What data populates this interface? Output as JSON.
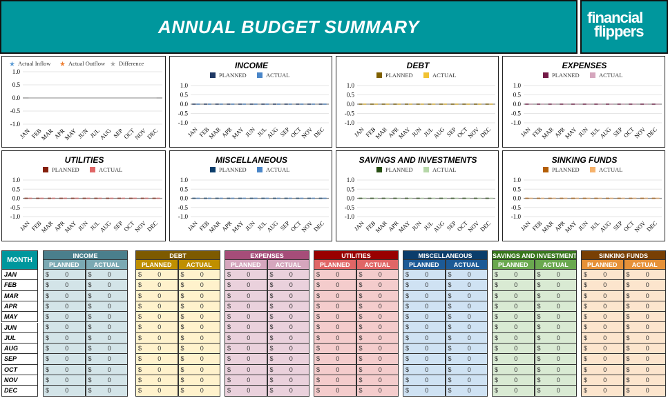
{
  "title": "ANNUAL BUDGET SUMMARY",
  "logo": {
    "line1": "financial",
    "line2": "flippers",
    "brand_color": "#00979d"
  },
  "months": [
    "JAN",
    "FEB",
    "MAR",
    "APR",
    "MAY",
    "JUN",
    "JUL",
    "AUG",
    "SEP",
    "OCT",
    "NOV",
    "DEC"
  ],
  "month_header": "MONTH",
  "chart_data": [
    {
      "type": "line",
      "title": "",
      "legend": [
        "Actual Inflow",
        "Actual Outflow",
        "Difference"
      ],
      "colors": [
        "#5b9bd5",
        "#ed7d31",
        "#a5a5a5"
      ],
      "marker": "star",
      "yticks": [
        "1.0",
        "0.5",
        "0.0",
        "-0.5",
        "-1.0"
      ],
      "ylim": [
        -1,
        1
      ],
      "series": [
        {
          "name": "Actual Inflow",
          "values": [
            0,
            0,
            0,
            0,
            0,
            0,
            0,
            0,
            0,
            0,
            0,
            0
          ]
        },
        {
          "name": "Actual Outflow",
          "values": [
            0,
            0,
            0,
            0,
            0,
            0,
            0,
            0,
            0,
            0,
            0,
            0
          ]
        },
        {
          "name": "Difference",
          "values": [
            0,
            0,
            0,
            0,
            0,
            0,
            0,
            0,
            0,
            0,
            0,
            0
          ]
        }
      ]
    },
    {
      "type": "bar",
      "title": "INCOME",
      "legend": [
        "PLANNED",
        "ACTUAL"
      ],
      "colors": [
        "#1f3864",
        "#4a86c8"
      ],
      "yticks": [
        "1.0",
        "0.5",
        "0.0",
        "-0.5",
        "-1.0"
      ],
      "ylim": [
        -1,
        1
      ],
      "series": [
        {
          "name": "PLANNED",
          "values": [
            0,
            0,
            0,
            0,
            0,
            0,
            0,
            0,
            0,
            0,
            0,
            0
          ]
        },
        {
          "name": "ACTUAL",
          "values": [
            0,
            0,
            0,
            0,
            0,
            0,
            0,
            0,
            0,
            0,
            0,
            0
          ]
        }
      ]
    },
    {
      "type": "bar",
      "title": "DEBT",
      "legend": [
        "PLANNED",
        "ACTUAL"
      ],
      "colors": [
        "#7f6000",
        "#f1c232"
      ],
      "yticks": [
        "1.0",
        "0.5",
        "0.0",
        "-0.5",
        "-1.0"
      ],
      "ylim": [
        -1,
        1
      ],
      "series": [
        {
          "name": "PLANNED",
          "values": [
            0,
            0,
            0,
            0,
            0,
            0,
            0,
            0,
            0,
            0,
            0,
            0
          ]
        },
        {
          "name": "ACTUAL",
          "values": [
            0,
            0,
            0,
            0,
            0,
            0,
            0,
            0,
            0,
            0,
            0,
            0
          ]
        }
      ]
    },
    {
      "type": "bar",
      "title": "EXPENSES",
      "legend": [
        "PLANNED",
        "ACTUAL"
      ],
      "colors": [
        "#741b47",
        "#d5a6bd"
      ],
      "yticks": [
        "1.0",
        "0.5",
        "0.0",
        "-0.5",
        "-1.0"
      ],
      "ylim": [
        -1,
        1
      ],
      "series": [
        {
          "name": "PLANNED",
          "values": [
            0,
            0,
            0,
            0,
            0,
            0,
            0,
            0,
            0,
            0,
            0,
            0
          ]
        },
        {
          "name": "ACTUAL",
          "values": [
            0,
            0,
            0,
            0,
            0,
            0,
            0,
            0,
            0,
            0,
            0,
            0
          ]
        }
      ]
    },
    {
      "type": "bar",
      "title": "UTILITIES",
      "legend": [
        "PLANNED",
        "ACTUAL"
      ],
      "colors": [
        "#85200c",
        "#e06666"
      ],
      "yticks": [
        "1.0",
        "0.5",
        "0.0",
        "-0.5",
        "-1.0"
      ],
      "ylim": [
        -1,
        1
      ],
      "series": [
        {
          "name": "PLANNED",
          "values": [
            0,
            0,
            0,
            0,
            0,
            0,
            0,
            0,
            0,
            0,
            0,
            0
          ]
        },
        {
          "name": "ACTUAL",
          "values": [
            0,
            0,
            0,
            0,
            0,
            0,
            0,
            0,
            0,
            0,
            0,
            0
          ]
        }
      ]
    },
    {
      "type": "bar",
      "title": "MISCELLANEOUS",
      "legend": [
        "PLANNED",
        "ACTUAL"
      ],
      "colors": [
        "#0b3d6b",
        "#4a86c8"
      ],
      "yticks": [
        "1.0",
        "0.5",
        "0.0",
        "-0.5",
        "-1.0"
      ],
      "ylim": [
        -1,
        1
      ],
      "series": [
        {
          "name": "PLANNED",
          "values": [
            0,
            0,
            0,
            0,
            0,
            0,
            0,
            0,
            0,
            0,
            0,
            0
          ]
        },
        {
          "name": "ACTUAL",
          "values": [
            0,
            0,
            0,
            0,
            0,
            0,
            0,
            0,
            0,
            0,
            0,
            0
          ]
        }
      ]
    },
    {
      "type": "bar",
      "title": "SAVINGS AND INVESTMENTS",
      "legend": [
        "PLANNED",
        "ACTUAL"
      ],
      "colors": [
        "#274e13",
        "#b6d7a8"
      ],
      "yticks": [
        "1.0",
        "0.5",
        "0.0",
        "-0.5",
        "-1.0"
      ],
      "ylim": [
        -1,
        1
      ],
      "series": [
        {
          "name": "PLANNED",
          "values": [
            0,
            0,
            0,
            0,
            0,
            0,
            0,
            0,
            0,
            0,
            0,
            0
          ]
        },
        {
          "name": "ACTUAL",
          "values": [
            0,
            0,
            0,
            0,
            0,
            0,
            0,
            0,
            0,
            0,
            0,
            0
          ]
        }
      ]
    },
    {
      "type": "bar",
      "title": "SINKING FUNDS",
      "legend": [
        "PLANNED",
        "ACTUAL"
      ],
      "colors": [
        "#b45f06",
        "#f6b26b"
      ],
      "yticks": [
        "1.0",
        "0.5",
        "0.0",
        "-0.5",
        "-1.0"
      ],
      "ylim": [
        -1,
        1
      ],
      "series": [
        {
          "name": "PLANNED",
          "values": [
            0,
            0,
            0,
            0,
            0,
            0,
            0,
            0,
            0,
            0,
            0,
            0
          ]
        },
        {
          "name": "ACTUAL",
          "values": [
            0,
            0,
            0,
            0,
            0,
            0,
            0,
            0,
            0,
            0,
            0,
            0
          ]
        }
      ]
    }
  ],
  "groups": [
    {
      "title": "INCOME",
      "planned": "PLANNED",
      "actual": "ACTUAL",
      "colors": [
        "#4a7f8c",
        "#7ba9b3",
        "#d3e4e8"
      ]
    },
    {
      "title": "DEBT",
      "planned": "PLANNED",
      "actual": "ACTUAL",
      "colors": [
        "#7d5a00",
        "#bf8f00",
        "#fff2cc"
      ]
    },
    {
      "title": "EXPENSES",
      "planned": "PLANNED",
      "actual": "ACTUAL",
      "colors": [
        "#a64d79",
        "#d5a6bd",
        "#ead1dc"
      ]
    },
    {
      "title": "UTILITIES",
      "planned": "PLANNED",
      "actual": "ACTUAL",
      "colors": [
        "#990000",
        "#e06666",
        "#f4cccc"
      ]
    },
    {
      "title": "MISCELLANEOUS",
      "planned": "PLANNED",
      "actual": "ACTUAL",
      "colors": [
        "#0b3d6b",
        "#1c5a96",
        "#cfe2f3"
      ]
    },
    {
      "title": "SAVINGS AND INVESTMENTS",
      "planned": "PLANNED",
      "actual": "ACTUAL",
      "colors": [
        "#38761d",
        "#6aa84f",
        "#d9ead3"
      ]
    },
    {
      "title": "SINKING FUNDS",
      "planned": "PLANNED",
      "actual": "ACTUAL",
      "colors": [
        "#783f04",
        "#e69138",
        "#fce5cd"
      ]
    }
  ],
  "currency": "$",
  "cell_value": "0"
}
